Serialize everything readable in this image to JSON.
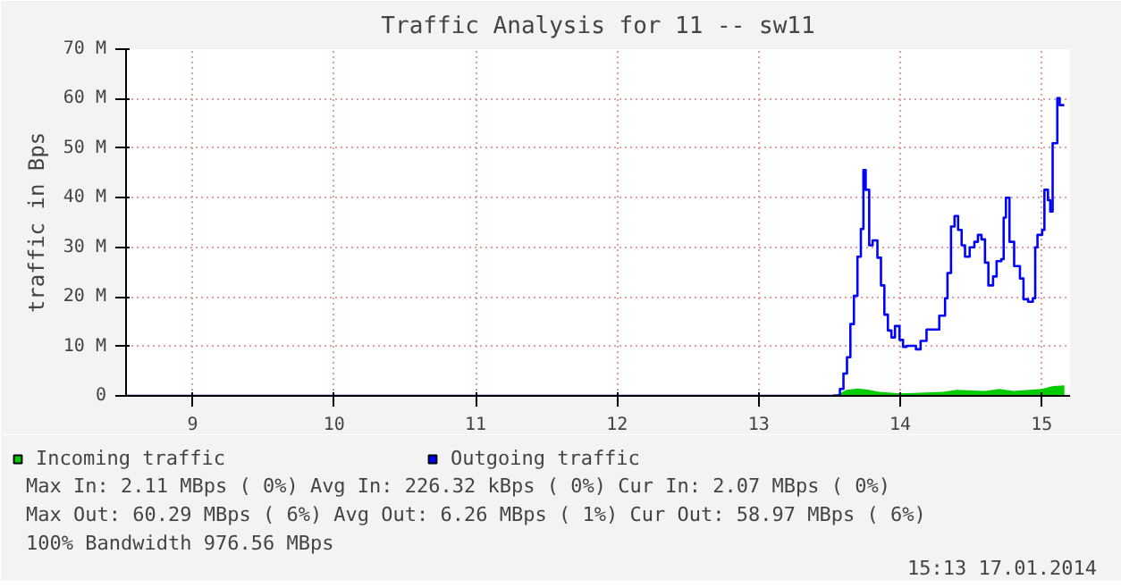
{
  "chart_data": {
    "type": "step",
    "title": "Traffic Analysis for 11 -- sw11",
    "ylabel": "traffic in Bps",
    "xlim": [
      8.53,
      15.2
    ],
    "xticks": [
      9,
      10,
      11,
      12,
      13,
      14,
      15
    ],
    "ylim": [
      0,
      70
    ],
    "yticks": [
      0,
      {
        "value": 10,
        "label": "10 M"
      },
      {
        "value": 20,
        "label": "20 M"
      },
      {
        "value": 30,
        "label": "30 M"
      },
      {
        "value": 40,
        "label": "40 M"
      },
      {
        "value": 50,
        "label": "50 M"
      },
      {
        "value": 60,
        "label": "60 M"
      },
      {
        "value": 70,
        "label": "70 M"
      }
    ],
    "grid": true,
    "legend": "bottom",
    "series": [
      {
        "name": "Incoming traffic",
        "color": "#00cc00",
        "type": "area",
        "x": [
          8.53,
          13.533,
          13.574,
          13.62,
          13.7,
          13.78,
          13.85,
          14.0,
          14.3,
          14.4,
          14.6,
          14.7,
          14.8,
          15.0,
          15.08,
          15.16
        ],
        "values": [
          0,
          0,
          0.5,
          1.2,
          1.5,
          1.2,
          0.8,
          0.5,
          0.8,
          1.2,
          1.0,
          1.4,
          1.0,
          1.4,
          2.0,
          2.1
        ]
      },
      {
        "name": "Outgoing traffic",
        "color": "#0000ff",
        "x": [
          8.53,
          13.533,
          13.574,
          13.599,
          13.624,
          13.648,
          13.673,
          13.698,
          13.722,
          13.74,
          13.756,
          13.781,
          13.805,
          13.839,
          13.864,
          13.888,
          13.913,
          13.938,
          13.963,
          13.995,
          14.02,
          14.045,
          14.111,
          14.144,
          14.186,
          14.276,
          14.317,
          14.334,
          14.359,
          14.384,
          14.409,
          14.434,
          14.458,
          14.491,
          14.524,
          14.549,
          14.574,
          14.599,
          14.623,
          14.656,
          14.681,
          14.714,
          14.731,
          14.747,
          14.772,
          14.805,
          14.846,
          14.871,
          14.904,
          14.937,
          14.954,
          14.97,
          15.003,
          15.019,
          15.044,
          15.06,
          15.077,
          15.11,
          15.127,
          15.159
        ],
        "values": [
          0,
          0.1,
          1.4,
          4.5,
          7.8,
          14.5,
          20.2,
          28.1,
          33.7,
          45.6,
          41.6,
          30.4,
          31.4,
          27.9,
          22.3,
          16.4,
          13.2,
          11.8,
          14.1,
          11.3,
          9.9,
          10.1,
          9.4,
          11.1,
          13.4,
          16.2,
          19.7,
          24.8,
          34.2,
          36.3,
          33.5,
          30.4,
          28.1,
          30.0,
          31.1,
          32.5,
          31.6,
          26.9,
          22.3,
          24.1,
          27.2,
          27.6,
          36.0,
          40.0,
          31.1,
          26.2,
          23.7,
          19.5,
          19.0,
          19.7,
          30.0,
          32.5,
          33.5,
          41.6,
          39.5,
          37.2,
          51.0,
          60.1,
          58.7,
          58.7
        ]
      }
    ],
    "annotations": [
      "Max In:   2.11 MBps (  0%)  Avg In: 226.32 kBps (  0%)  Cur In:   2.07 MBps (  0%)",
      "Max Out: 60.29 MBps (  6%)  Avg Out:  6.26 MBps (  1%)  Cur Out: 58.97 MBps (  6%)",
      "100% Bandwidth 976.56 MBps",
      "15:13 17.01.2014"
    ]
  }
}
